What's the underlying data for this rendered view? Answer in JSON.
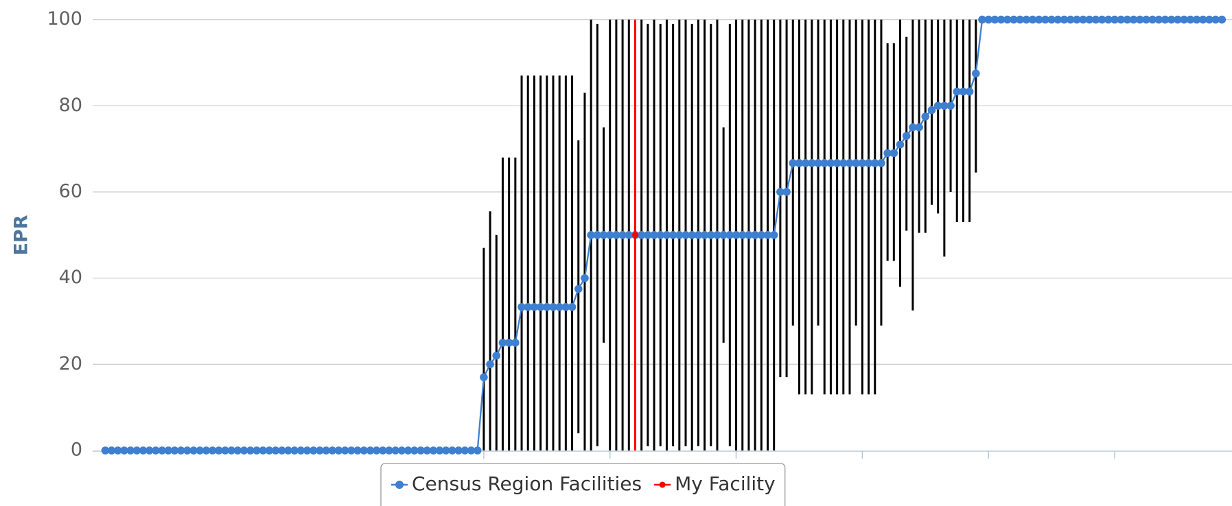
{
  "chart_data": {
    "type": "line",
    "y_label": "EPR",
    "ylim": [
      0,
      100
    ],
    "yticks": [
      0,
      20,
      40,
      60,
      80,
      100
    ],
    "xlim": [
      -2,
      178.6
    ],
    "xticks": [
      60,
      80,
      100,
      120,
      140,
      160
    ],
    "grid": true,
    "legend": "bottom",
    "x": [
      0,
      1,
      2,
      3,
      4,
      5,
      6,
      7,
      8,
      9,
      10,
      11,
      12,
      13,
      14,
      15,
      16,
      17,
      18,
      19,
      20,
      21,
      22,
      23,
      24,
      25,
      26,
      27,
      28,
      29,
      30,
      31,
      32,
      33,
      34,
      35,
      36,
      37,
      38,
      39,
      40,
      41,
      42,
      43,
      44,
      45,
      46,
      47,
      48,
      49,
      50,
      51,
      52,
      53,
      54,
      55,
      56,
      57,
      58,
      59,
      60,
      61,
      62,
      63,
      64,
      65,
      66,
      67,
      68,
      69,
      70,
      71,
      72,
      73,
      74,
      75,
      76,
      77,
      78,
      79,
      80,
      81,
      82,
      83,
      84,
      85,
      86,
      87,
      88,
      89,
      90,
      91,
      92,
      93,
      94,
      95,
      96,
      97,
      98,
      99,
      100,
      101,
      102,
      103,
      104,
      105,
      106,
      107,
      108,
      109,
      110,
      111,
      112,
      113,
      114,
      115,
      116,
      117,
      118,
      119,
      120,
      121,
      122,
      123,
      124,
      125,
      126,
      127,
      128,
      129,
      130,
      131,
      132,
      133,
      134,
      135,
      136,
      137,
      138,
      139,
      140,
      141,
      142,
      143,
      144,
      145,
      146,
      147,
      148,
      149,
      150,
      151,
      152,
      153,
      154,
      155,
      156,
      157,
      158,
      159,
      160,
      161,
      162,
      163,
      164,
      165,
      166,
      167,
      168,
      169,
      170,
      171,
      172,
      173,
      174,
      175,
      176,
      177
    ],
    "series": [
      {
        "name": "Census Region Facilities",
        "color": "#3f7fd0",
        "error_color": "#000000",
        "values": [
          0,
          0,
          0,
          0,
          0,
          0,
          0,
          0,
          0,
          0,
          0,
          0,
          0,
          0,
          0,
          0,
          0,
          0,
          0,
          0,
          0,
          0,
          0,
          0,
          0,
          0,
          0,
          0,
          0,
          0,
          0,
          0,
          0,
          0,
          0,
          0,
          0,
          0,
          0,
          0,
          0,
          0,
          0,
          0,
          0,
          0,
          0,
          0,
          0,
          0,
          0,
          0,
          0,
          0,
          0,
          0,
          0,
          0,
          0,
          0,
          17,
          20,
          22,
          25,
          25,
          25,
          33.3,
          33.3,
          33.3,
          33.3,
          33.3,
          33.3,
          33.3,
          33.3,
          33.3,
          37.5,
          40,
          50,
          50,
          50,
          50,
          50,
          50,
          50,
          50,
          50,
          50,
          50,
          50,
          50,
          50,
          50,
          50,
          50,
          50,
          50,
          50,
          50,
          50,
          50,
          50,
          50,
          50,
          50,
          50,
          50,
          50,
          60,
          60,
          66.7,
          66.7,
          66.7,
          66.7,
          66.7,
          66.7,
          66.7,
          66.7,
          66.7,
          66.7,
          66.7,
          66.7,
          66.7,
          66.7,
          66.7,
          69,
          69,
          71,
          73,
          75,
          75,
          77.5,
          79,
          80,
          80,
          80,
          83.3,
          83.3,
          83.3,
          87.5,
          100,
          100,
          100,
          100,
          100,
          100,
          100,
          100,
          100,
          100,
          100,
          100,
          100,
          100,
          100,
          100,
          100,
          100,
          100,
          100,
          100,
          100,
          100,
          100,
          100,
          100,
          100,
          100,
          100,
          100,
          100,
          100,
          100,
          100,
          100,
          100,
          100,
          100,
          100
        ],
        "error_low": [
          null,
          null,
          null,
          null,
          null,
          null,
          null,
          null,
          null,
          null,
          null,
          null,
          null,
          null,
          null,
          null,
          null,
          null,
          null,
          null,
          null,
          null,
          null,
          null,
          null,
          null,
          null,
          null,
          null,
          null,
          null,
          null,
          null,
          null,
          null,
          null,
          null,
          null,
          null,
          null,
          null,
          null,
          null,
          null,
          null,
          null,
          null,
          null,
          null,
          null,
          null,
          null,
          null,
          null,
          null,
          null,
          null,
          null,
          null,
          null,
          0,
          0,
          0,
          0,
          0,
          0,
          0,
          0,
          0,
          0,
          0,
          0,
          0,
          0,
          0,
          4,
          0,
          0,
          1,
          25,
          0,
          0,
          0,
          0,
          null,
          0,
          1,
          0,
          1,
          0,
          1,
          0,
          1,
          0,
          1,
          0,
          1,
          0,
          25,
          1,
          0,
          0,
          0,
          0,
          0,
          0,
          0,
          17,
          17,
          29,
          13,
          13,
          13,
          29,
          13,
          13,
          13,
          13,
          13,
          29,
          13,
          13,
          13,
          29,
          44,
          44,
          38,
          51,
          32.5,
          50.5,
          50.5,
          57,
          55,
          45,
          60,
          53,
          53,
          53,
          64.5,
          null,
          null,
          null,
          null,
          null,
          null,
          null,
          null,
          null,
          null,
          null,
          null,
          null,
          null,
          null,
          null,
          null,
          null,
          null,
          null,
          null,
          null,
          null,
          null,
          null,
          null,
          null,
          null,
          null,
          null,
          null,
          null,
          null,
          null,
          null,
          null,
          null,
          null,
          null
        ],
        "error_high": [
          null,
          null,
          null,
          null,
          null,
          null,
          null,
          null,
          null,
          null,
          null,
          null,
          null,
          null,
          null,
          null,
          null,
          null,
          null,
          null,
          null,
          null,
          null,
          null,
          null,
          null,
          null,
          null,
          null,
          null,
          null,
          null,
          null,
          null,
          null,
          null,
          null,
          null,
          null,
          null,
          null,
          null,
          null,
          null,
          null,
          null,
          null,
          null,
          null,
          null,
          null,
          null,
          null,
          null,
          null,
          null,
          null,
          null,
          null,
          null,
          47,
          55.5,
          50,
          68,
          68,
          68,
          87,
          87,
          87,
          87,
          87,
          87,
          87,
          87,
          87,
          72,
          83,
          100,
          99,
          75,
          100,
          100,
          100,
          100,
          null,
          100,
          99,
          100,
          99,
          100,
          99,
          100,
          100,
          99,
          100,
          100,
          99,
          100,
          75,
          99,
          100,
          100,
          100,
          100,
          100,
          100,
          100,
          100,
          100,
          100,
          100,
          100,
          100,
          100,
          100,
          100,
          100,
          100,
          100,
          100,
          100,
          100,
          100,
          100,
          94.5,
          94.5,
          100,
          96,
          100,
          100,
          100,
          100,
          100,
          100,
          100,
          100,
          100,
          100,
          100,
          null,
          null,
          null,
          null,
          null,
          null,
          null,
          null,
          null,
          null,
          null,
          null,
          null,
          null,
          null,
          null,
          null,
          null,
          null,
          null,
          null,
          null,
          null,
          null,
          null,
          null,
          null,
          null,
          null,
          null,
          null,
          null,
          null,
          null,
          null,
          null,
          null,
          null,
          null
        ]
      },
      {
        "name": "My Facility",
        "color": "#ff0000",
        "error_color": "#ff0000",
        "x": [
          84
        ],
        "values": [
          50
        ],
        "error_low": [
          0
        ],
        "error_high": [
          100
        ]
      }
    ]
  }
}
